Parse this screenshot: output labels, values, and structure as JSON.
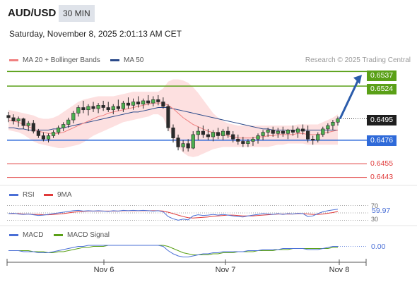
{
  "header": {
    "symbol": "AUD/USD",
    "timeframe": "30 MIN",
    "datetime": "Saturday, November 8, 2025 2:01:13 AM CET"
  },
  "legend": {
    "bollinger_label": "MA 20 + Bollinger Bands",
    "ma50_label": "MA 50",
    "credit": "Research © 2025 Trading Central",
    "colors": {
      "bollinger": "#f08080",
      "ma50": "#2b4a8a",
      "band_fill": "#fde0e0"
    }
  },
  "chart_data": [
    {
      "type": "line",
      "panel": "price",
      "y_range": [
        0.6439,
        0.6541
      ],
      "x_ticks": [
        "Nov 6",
        "Nov 7",
        "Nov 8"
      ],
      "candles": [
        [
          0.6498,
          0.6501,
          0.6492,
          0.6496
        ],
        [
          0.6496,
          0.6499,
          0.649,
          0.6493
        ],
        [
          0.6493,
          0.6497,
          0.6488,
          0.6495
        ],
        [
          0.6495,
          0.6496,
          0.6486,
          0.6489
        ],
        [
          0.6489,
          0.6493,
          0.6484,
          0.6491
        ],
        [
          0.6491,
          0.6494,
          0.6482,
          0.6484
        ],
        [
          0.6484,
          0.6486,
          0.6478,
          0.648
        ],
        [
          0.648,
          0.6483,
          0.6475,
          0.6477
        ],
        [
          0.6477,
          0.6482,
          0.6474,
          0.648
        ],
        [
          0.648,
          0.6485,
          0.6478,
          0.6483
        ],
        [
          0.6483,
          0.6489,
          0.6481,
          0.6487
        ],
        [
          0.6487,
          0.6492,
          0.6484,
          0.649
        ],
        [
          0.649,
          0.6496,
          0.6487,
          0.6494
        ],
        [
          0.6494,
          0.6502,
          0.6491,
          0.65
        ],
        [
          0.65,
          0.6507,
          0.6497,
          0.6505
        ],
        [
          0.6505,
          0.6511,
          0.65,
          0.6503
        ],
        [
          0.6503,
          0.6508,
          0.6498,
          0.6506
        ],
        [
          0.6506,
          0.651,
          0.6501,
          0.6504
        ],
        [
          0.6504,
          0.6509,
          0.65,
          0.6507
        ],
        [
          0.6507,
          0.6511,
          0.6502,
          0.6505
        ],
        [
          0.6505,
          0.651,
          0.6501,
          0.6503
        ],
        [
          0.6503,
          0.6508,
          0.6499,
          0.6506
        ],
        [
          0.6506,
          0.6512,
          0.6502,
          0.6504
        ],
        [
          0.6504,
          0.6511,
          0.6501,
          0.6509
        ],
        [
          0.6509,
          0.6514,
          0.6504,
          0.6507
        ],
        [
          0.6507,
          0.6513,
          0.6503,
          0.651
        ],
        [
          0.651,
          0.6515,
          0.6505,
          0.6508
        ],
        [
          0.6508,
          0.6513,
          0.6504,
          0.6511
        ],
        [
          0.6511,
          0.6516,
          0.6507,
          0.6509
        ],
        [
          0.6509,
          0.6515,
          0.6506,
          0.6512
        ],
        [
          0.6512,
          0.6516,
          0.6507,
          0.651
        ],
        [
          0.651,
          0.6514,
          0.6504,
          0.6506
        ],
        [
          0.6506,
          0.6508,
          0.6484,
          0.6487
        ],
        [
          0.6487,
          0.649,
          0.6474,
          0.6478
        ],
        [
          0.6478,
          0.6481,
          0.6467,
          0.647
        ],
        [
          0.647,
          0.6476,
          0.6466,
          0.6473
        ],
        [
          0.6473,
          0.6477,
          0.6466,
          0.6469
        ],
        [
          0.6469,
          0.6484,
          0.6468,
          0.6481
        ],
        [
          0.6481,
          0.6488,
          0.6476,
          0.6484
        ],
        [
          0.6484,
          0.6489,
          0.6478,
          0.6481
        ],
        [
          0.6481,
          0.6486,
          0.6476,
          0.6479
        ],
        [
          0.6479,
          0.6485,
          0.6475,
          0.6483
        ],
        [
          0.6483,
          0.6487,
          0.6477,
          0.648
        ],
        [
          0.648,
          0.6486,
          0.6476,
          0.6484
        ],
        [
          0.6484,
          0.6488,
          0.6478,
          0.6481
        ],
        [
          0.6481,
          0.6484,
          0.6474,
          0.6477
        ],
        [
          0.6477,
          0.6481,
          0.6472,
          0.6475
        ],
        [
          0.6475,
          0.6479,
          0.647,
          0.6473
        ],
        [
          0.6473,
          0.6477,
          0.647,
          0.6475
        ],
        [
          0.6475,
          0.6479,
          0.6471,
          0.6477
        ],
        [
          0.6477,
          0.6482,
          0.6473,
          0.648
        ],
        [
          0.648,
          0.6485,
          0.6476,
          0.6483
        ],
        [
          0.6483,
          0.6487,
          0.6479,
          0.6485
        ],
        [
          0.6485,
          0.6488,
          0.6479,
          0.6482
        ],
        [
          0.6482,
          0.6487,
          0.6478,
          0.6484
        ],
        [
          0.6484,
          0.6488,
          0.6479,
          0.6482
        ],
        [
          0.6482,
          0.6486,
          0.6477,
          0.6485
        ],
        [
          0.6485,
          0.6489,
          0.648,
          0.6483
        ],
        [
          0.6483,
          0.6488,
          0.6478,
          0.6486
        ],
        [
          0.6486,
          0.649,
          0.6481,
          0.6484
        ],
        [
          0.6484,
          0.6489,
          0.6474,
          0.6477
        ],
        [
          0.6477,
          0.648,
          0.6472,
          0.6476
        ],
        [
          0.6476,
          0.6483,
          0.6474,
          0.6481
        ],
        [
          0.6481,
          0.6488,
          0.6479,
          0.6486
        ],
        [
          0.6486,
          0.6491,
          0.6482,
          0.6489
        ],
        [
          0.6489,
          0.6494,
          0.6485,
          0.6492
        ],
        [
          0.6492,
          0.6497,
          0.6489,
          0.6495
        ]
      ],
      "ma20": [
        0.6494,
        0.6493,
        0.6492,
        0.649,
        0.6488,
        0.6486,
        0.6484,
        0.6483,
        0.6482,
        0.6482,
        0.6482,
        0.6483,
        0.6485,
        0.6487,
        0.6489,
        0.6491,
        0.6493,
        0.6495,
        0.6497,
        0.6498,
        0.65,
        0.6501,
        0.6502,
        0.6503,
        0.6504,
        0.6505,
        0.6506,
        0.6507,
        0.6508,
        0.6509,
        0.6509,
        0.6509,
        0.6507,
        0.6504,
        0.65,
        0.6496,
        0.6493,
        0.649,
        0.6488,
        0.6486,
        0.6484,
        0.6483,
        0.6482,
        0.6481,
        0.648,
        0.6479,
        0.6478,
        0.6478,
        0.6478,
        0.6478,
        0.6479,
        0.6479,
        0.648,
        0.648,
        0.6481,
        0.6481,
        0.6481,
        0.6481,
        0.6482,
        0.6482,
        0.6481,
        0.6481,
        0.6481,
        0.6482,
        0.6483,
        0.6484,
        0.6485
      ],
      "ma50": [
        0.6487,
        0.6487,
        0.6486,
        0.6486,
        0.6485,
        0.6485,
        0.6485,
        0.6485,
        0.6485,
        0.6486,
        0.6486,
        0.6487,
        0.6488,
        0.6489,
        0.649,
        0.6491,
        0.6492,
        0.6493,
        0.6494,
        0.6495,
        0.6496,
        0.6497,
        0.6498,
        0.6499,
        0.65,
        0.6501,
        0.6501,
        0.6502,
        0.6503,
        0.6504,
        0.6505,
        0.6505,
        0.6505,
        0.6504,
        0.6503,
        0.6502,
        0.6501,
        0.65,
        0.6499,
        0.6498,
        0.6497,
        0.6496,
        0.6495,
        0.6494,
        0.6493,
        0.6492,
        0.6491,
        0.649,
        0.6489,
        0.6488,
        0.6487,
        0.6486,
        0.6486,
        0.6485,
        0.6485,
        0.6485,
        0.6485,
        0.6485,
        0.6485,
        0.6485,
        0.6485,
        0.6485,
        0.6485,
        0.6485,
        0.6485,
        0.6485,
        0.6485
      ],
      "bb_upper": [
        0.6503,
        0.6502,
        0.6501,
        0.65,
        0.6499,
        0.6498,
        0.6496,
        0.6495,
        0.6495,
        0.6496,
        0.6498,
        0.6501,
        0.6504,
        0.6507,
        0.651,
        0.6512,
        0.6513,
        0.6514,
        0.6515,
        0.6515,
        0.6515,
        0.6515,
        0.6516,
        0.6517,
        0.6518,
        0.6519,
        0.6519,
        0.6519,
        0.6519,
        0.6519,
        0.6519,
        0.6522,
        0.6528,
        0.653,
        0.653,
        0.6529,
        0.6527,
        0.6523,
        0.6518,
        0.6512,
        0.6506,
        0.65,
        0.6496,
        0.6493,
        0.6491,
        0.649,
        0.6489,
        0.6489,
        0.6489,
        0.6489,
        0.6489,
        0.6489,
        0.6489,
        0.6489,
        0.6489,
        0.6489,
        0.6489,
        0.6489,
        0.649,
        0.649,
        0.649,
        0.649,
        0.649,
        0.6492,
        0.6494,
        0.6496,
        0.6499
      ],
      "bb_lower": [
        0.6485,
        0.6484,
        0.6483,
        0.6481,
        0.6478,
        0.6475,
        0.6473,
        0.6472,
        0.6471,
        0.647,
        0.6469,
        0.6469,
        0.647,
        0.6471,
        0.6472,
        0.6474,
        0.6477,
        0.648,
        0.6482,
        0.6484,
        0.6486,
        0.6488,
        0.649,
        0.6492,
        0.6493,
        0.6494,
        0.6495,
        0.6496,
        0.6497,
        0.6499,
        0.6499,
        0.6496,
        0.6486,
        0.6478,
        0.647,
        0.6465,
        0.6462,
        0.6461,
        0.6462,
        0.6464,
        0.6466,
        0.6468,
        0.6469,
        0.647,
        0.647,
        0.647,
        0.647,
        0.647,
        0.647,
        0.647,
        0.647,
        0.647,
        0.647,
        0.6471,
        0.6472,
        0.6472,
        0.6473,
        0.6473,
        0.6473,
        0.6473,
        0.6472,
        0.6472,
        0.6472,
        0.6472,
        0.6472,
        0.6472,
        0.6472
      ],
      "levels": [
        {
          "value": 0.6537,
          "label": "0.6537",
          "kind": "resistance",
          "color": "#5aa017"
        },
        {
          "value": 0.6524,
          "label": "0.6524",
          "kind": "resistance",
          "color": "#5aa017"
        },
        {
          "value": 0.6495,
          "label": "0.6495",
          "kind": "last",
          "color": "#1f1f1f"
        },
        {
          "value": 0.6476,
          "label": "0.6476",
          "kind": "pivot",
          "color": "#2f6ad9"
        },
        {
          "value": 0.6455,
          "label": "0.6455",
          "kind": "support",
          "color": "#e03a3a"
        },
        {
          "value": 0.6443,
          "label": "0.6443",
          "kind": "support",
          "color": "#e03a3a"
        }
      ],
      "arrow": {
        "from_value": 0.6495,
        "to_value": 0.6534,
        "color": "#2b5cab"
      }
    },
    {
      "type": "line",
      "panel": "rsi",
      "legend": [
        "RSI",
        "9MA"
      ],
      "colors": {
        "rsi": "#4a6fd6",
        "ma": "#e03a3a"
      },
      "y_range": [
        25,
        75
      ],
      "ticks": [
        "70",
        "30"
      ],
      "last_value": "59.97",
      "rsi": [
        48,
        49,
        47,
        46,
        47,
        45,
        43,
        44,
        46,
        48,
        50,
        52,
        54,
        56,
        57,
        55,
        56,
        55,
        56,
        55,
        54,
        56,
        55,
        57,
        56,
        57,
        56,
        57,
        56,
        55,
        56,
        53,
        40,
        34,
        30,
        33,
        31,
        42,
        45,
        43,
        44,
        46,
        44,
        46,
        44,
        42,
        40,
        39,
        42,
        44,
        46,
        48,
        47,
        46,
        48,
        46,
        48,
        47,
        49,
        48,
        40,
        42,
        48,
        53,
        56,
        58,
        60
      ],
      "ma": [
        48,
        48,
        48,
        47,
        47,
        46,
        46,
        45,
        45,
        46,
        47,
        48,
        50,
        52,
        53,
        54,
        55,
        55,
        55,
        55,
        55,
        55,
        55,
        56,
        56,
        56,
        56,
        56,
        56,
        56,
        56,
        55,
        52,
        48,
        44,
        40,
        37,
        36,
        37,
        38,
        39,
        41,
        42,
        43,
        44,
        44,
        43,
        42,
        42,
        42,
        43,
        44,
        45,
        46,
        47,
        47,
        47,
        47,
        48,
        48,
        47,
        46,
        46,
        47,
        49,
        51,
        54
      ]
    },
    {
      "type": "line",
      "panel": "macd",
      "legend": [
        "MACD",
        "MACD Signal"
      ],
      "colors": {
        "macd": "#4a6fd6",
        "signal": "#5aa017"
      },
      "y_range": [
        -0.0008,
        0.0008
      ],
      "last_value": "0.00",
      "macd": [
        -0.0001,
        -0.0001,
        -0.0001,
        -0.0002,
        -0.0002,
        -0.0002,
        -0.0003,
        -0.0003,
        -0.0003,
        -0.0002,
        -0.0001,
        0.0,
        0.0001,
        0.0002,
        0.0003,
        0.0003,
        0.0004,
        0.0004,
        0.0004,
        0.0004,
        0.0004,
        0.0004,
        0.0004,
        0.0004,
        0.0004,
        0.0004,
        0.0004,
        0.0004,
        0.0004,
        0.0004,
        0.0004,
        0.0003,
        -0.0001,
        -0.0004,
        -0.0006,
        -0.0007,
        -0.0007,
        -0.0006,
        -0.0005,
        -0.0004,
        -0.0004,
        -0.0003,
        -0.0003,
        -0.0002,
        -0.0002,
        -0.0002,
        -0.0002,
        -0.0002,
        -0.0001,
        -0.0001,
        -0.0001,
        0.0,
        0.0,
        0.0,
        0.0,
        0.0001,
        0.0001,
        0.0001,
        0.0001,
        0.0001,
        0.0,
        0.0,
        0.0,
        0.0001,
        0.0002,
        0.0003,
        0.0003
      ],
      "signal": [
        -0.0001,
        -0.0001,
        -0.0001,
        -0.0001,
        -0.0001,
        -0.0002,
        -0.0002,
        -0.0002,
        -0.0003,
        -0.0003,
        -0.0002,
        -0.0002,
        -0.0001,
        0.0,
        0.0001,
        0.0002,
        0.0002,
        0.0003,
        0.0003,
        0.0003,
        0.0004,
        0.0004,
        0.0004,
        0.0004,
        0.0004,
        0.0004,
        0.0004,
        0.0004,
        0.0004,
        0.0004,
        0.0004,
        0.0004,
        0.0003,
        0.0001,
        -0.0001,
        -0.0003,
        -0.0004,
        -0.0005,
        -0.0005,
        -0.0005,
        -0.0005,
        -0.0004,
        -0.0004,
        -0.0003,
        -0.0003,
        -0.0003,
        -0.0002,
        -0.0002,
        -0.0002,
        -0.0002,
        -0.0001,
        -0.0001,
        -0.0001,
        -0.0001,
        0.0,
        0.0,
        0.0,
        0.0001,
        0.0001,
        0.0001,
        0.0001,
        0.0001,
        0.0001,
        0.0001,
        0.0001,
        0.0002,
        0.0002
      ]
    }
  ]
}
